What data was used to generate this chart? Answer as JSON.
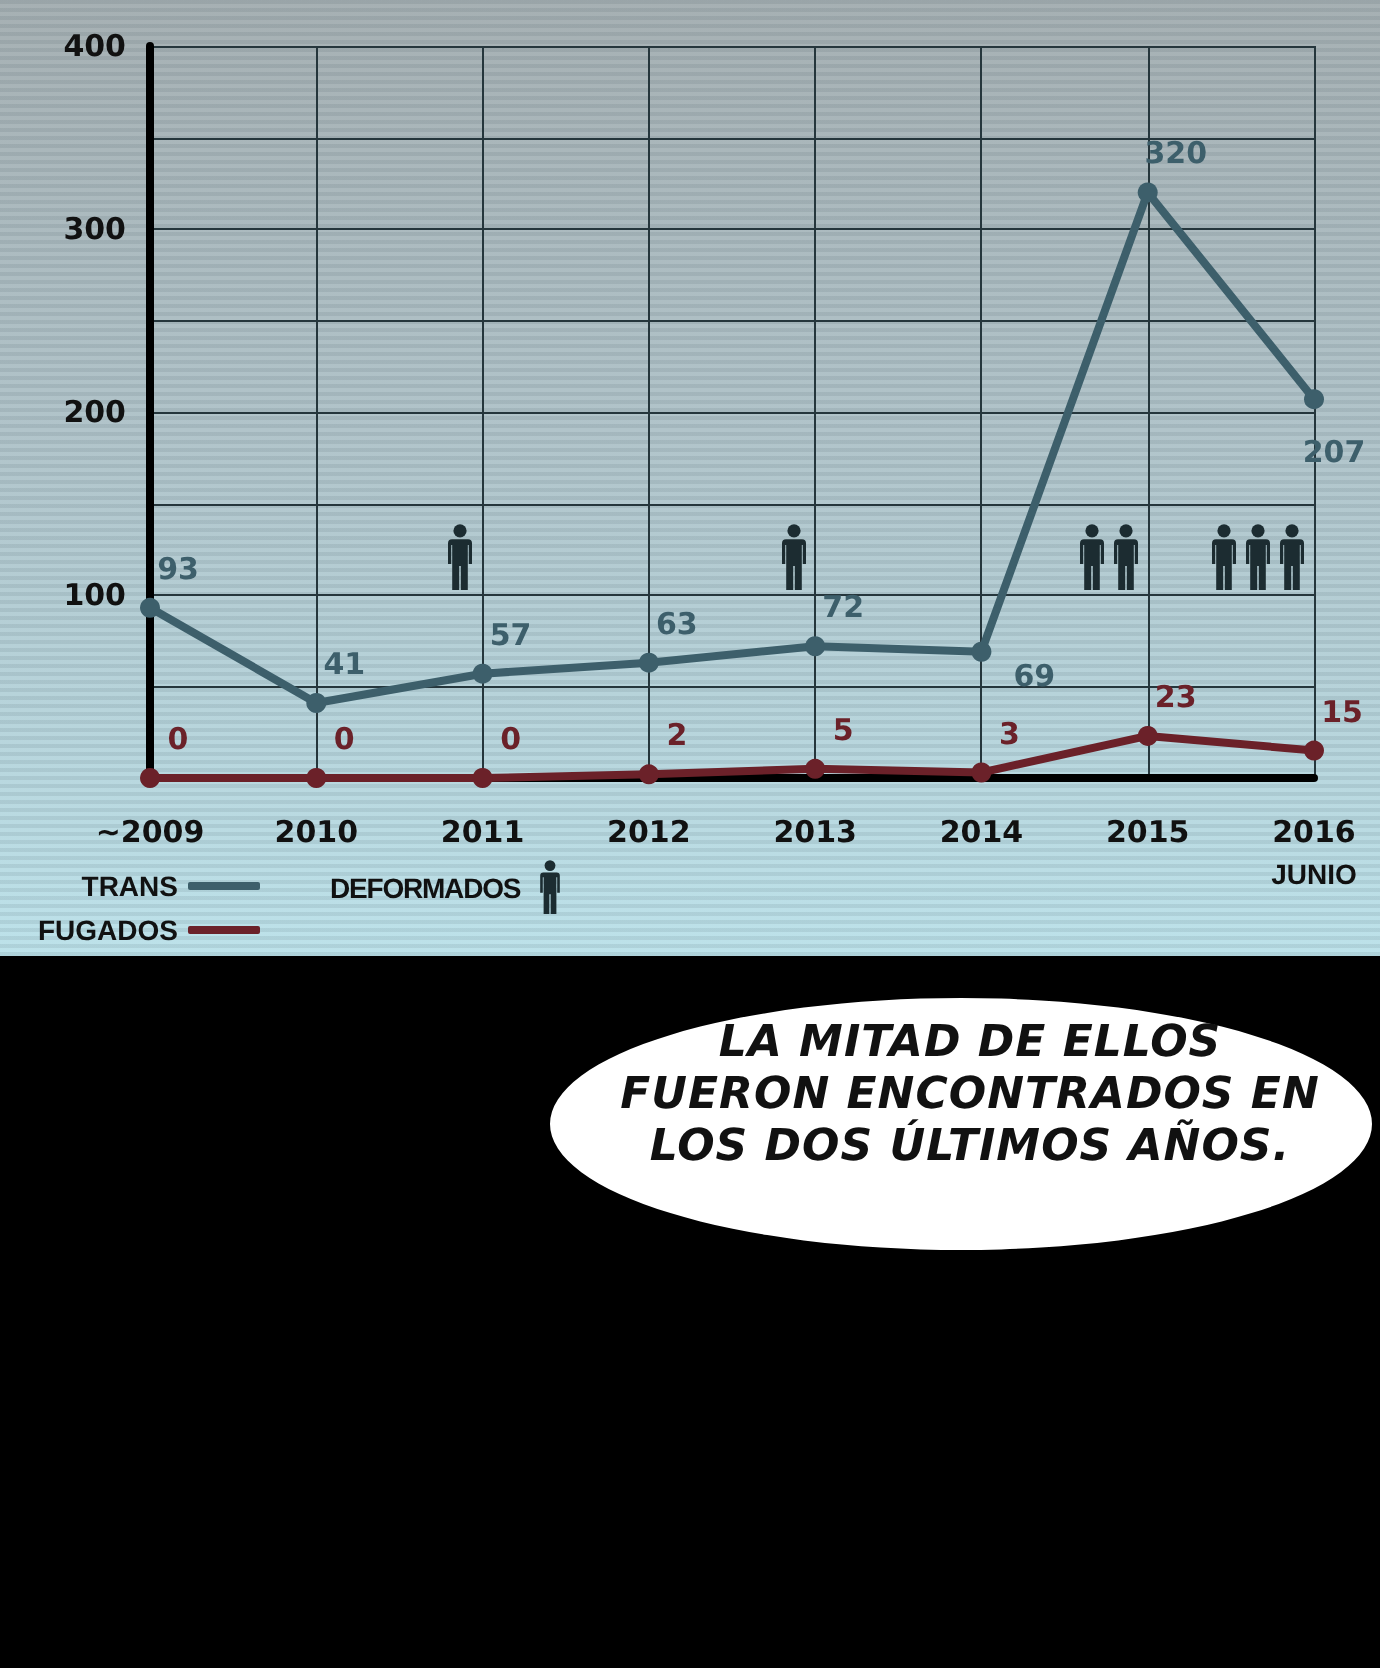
{
  "chart_data": {
    "type": "line",
    "categories": [
      "~2009",
      "2010",
      "2011",
      "2012",
      "2013",
      "2014",
      "2015",
      "2016\nJUNIO"
    ],
    "series": [
      {
        "name": "TRANS",
        "color": "#3d5f6b",
        "values": [
          93,
          41,
          57,
          63,
          72,
          69,
          320,
          207
        ]
      },
      {
        "name": "FUGADOS",
        "color": "#6b2129",
        "values": [
          0,
          0,
          0,
          2,
          5,
          3,
          23,
          15
        ]
      }
    ],
    "ylim": [
      0,
      400
    ],
    "yticks": [
      {
        "value": 0,
        "label": null
      },
      {
        "value": 50,
        "label": null
      },
      100,
      {
        "value": 150,
        "label": null
      },
      200,
      {
        "value": 250,
        "label": null
      },
      300,
      {
        "value": 350,
        "label": null
      },
      400
    ],
    "grid": true,
    "legend": "bottom left",
    "marker": "circle",
    "data_labels": true,
    "annotations": [
      "DEFORMADOS",
      "LA MITAD DE ELLOS FUERON ENCONTRADOS EN LOS DOS ÚLTIMOS AÑOS."
    ]
  }
}
